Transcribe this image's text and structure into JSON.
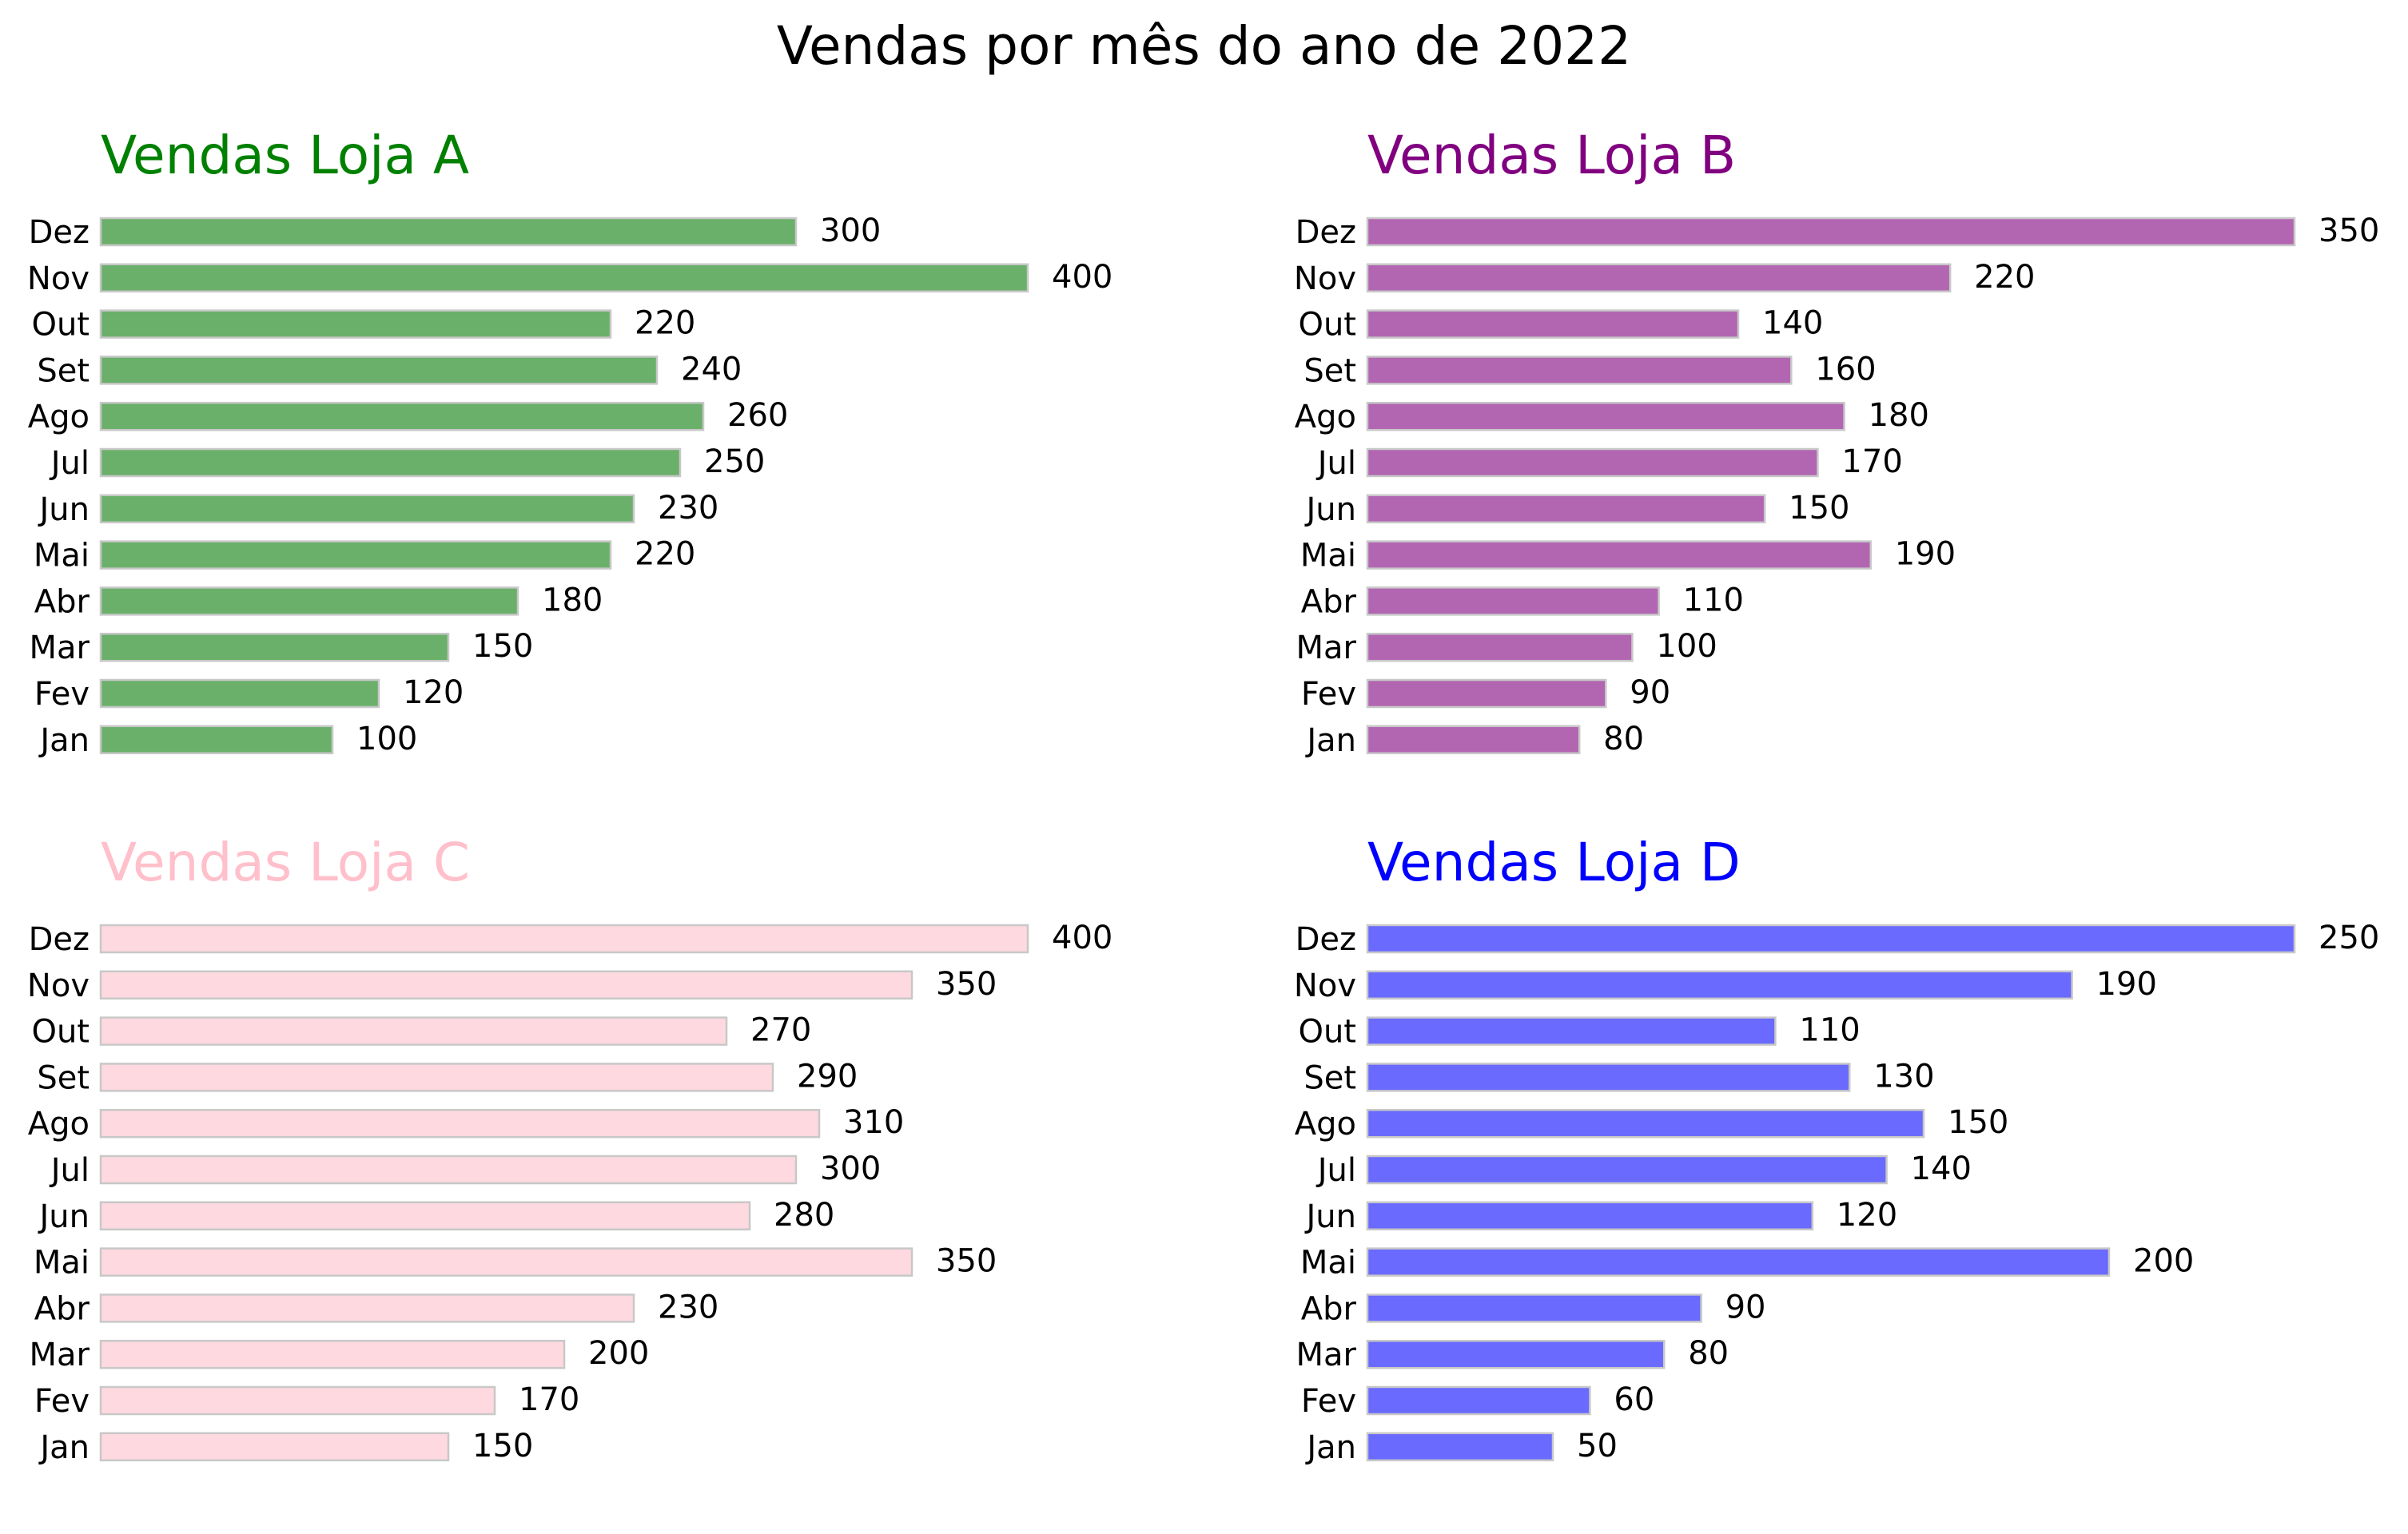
{
  "title": "Vendas por mês do ano de 2022",
  "chart_data": [
    {
      "type": "bar",
      "orientation": "horizontal",
      "title": "Vendas Loja A",
      "title_color": "#008000",
      "bar_color": "#6ab06a",
      "categories": [
        "Jan",
        "Fev",
        "Mar",
        "Abr",
        "Mai",
        "Jun",
        "Jul",
        "Ago",
        "Set",
        "Out",
        "Nov",
        "Dez"
      ],
      "values": [
        100,
        120,
        150,
        180,
        220,
        230,
        250,
        260,
        240,
        220,
        400,
        300
      ],
      "xlim": [
        0,
        400
      ]
    },
    {
      "type": "bar",
      "orientation": "horizontal",
      "title": "Vendas Loja B",
      "title_color": "#800080",
      "bar_color": "#b266b2",
      "categories": [
        "Jan",
        "Fev",
        "Mar",
        "Abr",
        "Mai",
        "Jun",
        "Jul",
        "Ago",
        "Set",
        "Out",
        "Nov",
        "Dez"
      ],
      "values": [
        80,
        90,
        100,
        110,
        190,
        150,
        170,
        180,
        160,
        140,
        220,
        350
      ],
      "xlim": [
        0,
        350
      ]
    },
    {
      "type": "bar",
      "orientation": "horizontal",
      "title": "Vendas Loja C",
      "title_color": "#ffc0cb",
      "bar_color": "#ffd9e0",
      "categories": [
        "Jan",
        "Fev",
        "Mar",
        "Abr",
        "Mai",
        "Jun",
        "Jul",
        "Ago",
        "Set",
        "Out",
        "Nov",
        "Dez"
      ],
      "values": [
        150,
        170,
        200,
        230,
        350,
        280,
        300,
        310,
        290,
        270,
        350,
        400
      ],
      "xlim": [
        0,
        400
      ]
    },
    {
      "type": "bar",
      "orientation": "horizontal",
      "title": "Vendas Loja D",
      "title_color": "#0000ff",
      "bar_color": "#6a6aff",
      "categories": [
        "Jan",
        "Fev",
        "Mar",
        "Abr",
        "Mai",
        "Jun",
        "Jul",
        "Ago",
        "Set",
        "Out",
        "Nov",
        "Dez"
      ],
      "values": [
        50,
        60,
        80,
        90,
        200,
        120,
        140,
        150,
        130,
        110,
        190,
        250
      ],
      "xlim": [
        0,
        250
      ]
    }
  ]
}
